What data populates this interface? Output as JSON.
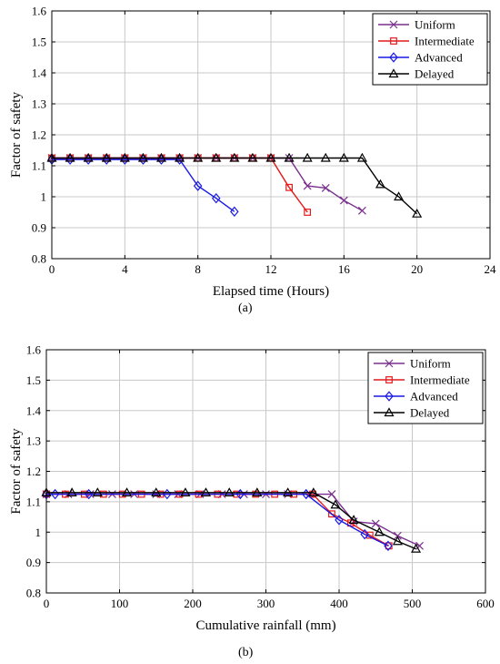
{
  "chart_data": [
    {
      "type": "line",
      "panel_label": "(a)",
      "xlabel": "Elapsed time (Hours)",
      "ylabel": "Factor of safety",
      "xlim": [
        0,
        24
      ],
      "ylim": [
        0.8,
        1.6
      ],
      "xticks": [
        "0",
        "4",
        "8",
        "12",
        "16",
        "20",
        "24"
      ],
      "yticks": [
        "0.8",
        "0.9",
        "1",
        "1.1",
        "1.2",
        "1.3",
        "1.4",
        "1.5",
        "1.6"
      ],
      "grid": true,
      "legend_position": "top-right",
      "series": [
        {
          "name": "Uniform",
          "color": "#7b2f8e",
          "marker": "x",
          "x": [
            0,
            1,
            2,
            3,
            4,
            5,
            6,
            7,
            8,
            9,
            10,
            11,
            12,
            13,
            14,
            15,
            16,
            17
          ],
          "y": [
            1.125,
            1.125,
            1.125,
            1.125,
            1.125,
            1.125,
            1.125,
            1.125,
            1.125,
            1.125,
            1.125,
            1.125,
            1.125,
            1.125,
            1.035,
            1.028,
            0.988,
            0.955
          ]
        },
        {
          "name": "Intermediate",
          "color": "#e41a1a",
          "marker": "square",
          "x": [
            0,
            1,
            2,
            3,
            4,
            5,
            6,
            7,
            8,
            9,
            10,
            11,
            12,
            13,
            14
          ],
          "y": [
            1.125,
            1.125,
            1.125,
            1.125,
            1.125,
            1.125,
            1.125,
            1.125,
            1.125,
            1.125,
            1.125,
            1.125,
            1.125,
            1.03,
            0.95
          ]
        },
        {
          "name": "Advanced",
          "color": "#1a1ae6",
          "marker": "diamond",
          "x": [
            0,
            1,
            2,
            3,
            4,
            5,
            6,
            7,
            8,
            9,
            10
          ],
          "y": [
            1.12,
            1.12,
            1.12,
            1.12,
            1.12,
            1.12,
            1.12,
            1.12,
            1.035,
            0.995,
            0.952
          ]
        },
        {
          "name": "Delayed",
          "color": "#000000",
          "marker": "triangle",
          "x": [
            0,
            1,
            2,
            3,
            4,
            5,
            6,
            7,
            8,
            9,
            10,
            11,
            12,
            13,
            14,
            15,
            16,
            17,
            18,
            19,
            20
          ],
          "y": [
            1.125,
            1.125,
            1.125,
            1.125,
            1.125,
            1.125,
            1.125,
            1.125,
            1.125,
            1.125,
            1.125,
            1.125,
            1.125,
            1.125,
            1.125,
            1.125,
            1.125,
            1.125,
            1.04,
            1.0,
            0.945
          ]
        }
      ]
    },
    {
      "type": "line",
      "panel_label": "(b)",
      "xlabel": "Cumulative rainfall (mm)",
      "ylabel": "Factor of safety",
      "xlim": [
        0,
        600
      ],
      "ylim": [
        0.8,
        1.6
      ],
      "xticks": [
        "0",
        "100",
        "200",
        "300",
        "400",
        "500",
        "600"
      ],
      "yticks": [
        "0.8",
        "0.9",
        "1",
        "1.1",
        "1.2",
        "1.3",
        "1.4",
        "1.5",
        "1.6"
      ],
      "grid": true,
      "legend_position": "top-right",
      "series": [
        {
          "name": "Uniform",
          "color": "#7b2f8e",
          "marker": "x",
          "x": [
            0,
            30,
            60,
            90,
            120,
            150,
            180,
            210,
            240,
            270,
            300,
            330,
            360,
            390,
            420,
            450,
            480,
            510
          ],
          "y": [
            1.125,
            1.125,
            1.125,
            1.125,
            1.125,
            1.125,
            1.125,
            1.125,
            1.125,
            1.125,
            1.125,
            1.125,
            1.125,
            1.125,
            1.035,
            1.028,
            0.988,
            0.955
          ]
        },
        {
          "name": "Intermediate",
          "color": "#e41a1a",
          "marker": "square",
          "x": [
            0,
            26,
            52,
            78,
            104,
            130,
            156,
            182,
            208,
            234,
            260,
            286,
            312,
            338,
            364,
            390,
            416,
            442,
            468
          ],
          "y": [
            1.125,
            1.125,
            1.125,
            1.125,
            1.125,
            1.125,
            1.125,
            1.125,
            1.125,
            1.125,
            1.125,
            1.125,
            1.125,
            1.125,
            1.125,
            1.06,
            1.03,
            0.99,
            0.955
          ]
        },
        {
          "name": "Advanced",
          "color": "#1a1ae6",
          "marker": "diamond",
          "x": [
            0,
            12,
            58,
            165,
            265,
            355,
            400,
            435,
            467
          ],
          "y": [
            1.125,
            1.125,
            1.125,
            1.125,
            1.125,
            1.125,
            1.04,
            0.993,
            0.955
          ]
        },
        {
          "name": "Delayed",
          "color": "#000000",
          "marker": "triangle",
          "x": [
            0,
            35,
            70,
            110,
            150,
            190,
            218,
            250,
            288,
            330,
            365,
            395,
            420,
            455,
            480,
            505
          ],
          "y": [
            1.13,
            1.13,
            1.13,
            1.13,
            1.13,
            1.13,
            1.13,
            1.13,
            1.13,
            1.13,
            1.13,
            1.09,
            1.04,
            1.0,
            0.97,
            0.945
          ]
        }
      ]
    }
  ]
}
